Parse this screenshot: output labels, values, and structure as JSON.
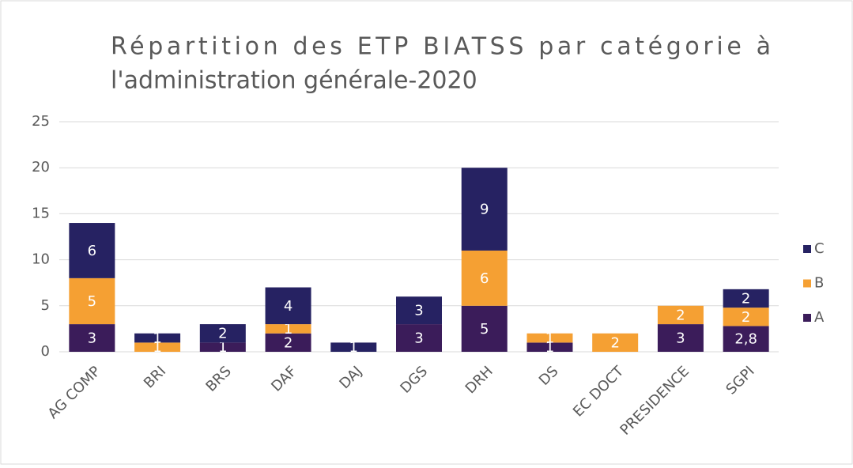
{
  "chart_data": {
    "type": "stacked_bar",
    "title": [
      "Répartition des ETP BIATSS par catégorie à",
      "l'administration générale-2020"
    ],
    "categories": [
      "AG COMP",
      "BRI",
      "BRS",
      "DAF",
      "DAJ",
      "DGS",
      "DRH",
      "DS",
      "EC DOCT",
      "PRESIDENCE",
      "SGPI"
    ],
    "series": [
      {
        "name": "A",
        "color": "#3b1c5a",
        "values": [
          3,
          null,
          1,
          2,
          null,
          3,
          5,
          1,
          null,
          3,
          2.8
        ],
        "value_labels": [
          "3",
          null,
          "1",
          "2",
          null,
          "3",
          "5",
          "1",
          null,
          "3",
          "2,8"
        ]
      },
      {
        "name": "B",
        "color": "#f5a033",
        "values": [
          5,
          1,
          null,
          1,
          null,
          null,
          6,
          1,
          2,
          2,
          2
        ]
      },
      {
        "name": "C",
        "color": "#262262",
        "values": [
          6,
          1,
          2,
          4,
          1,
          3,
          9,
          null,
          null,
          null,
          2
        ]
      }
    ],
    "ylim": [
      0,
      25
    ],
    "yticks": [
      0,
      5,
      10,
      15,
      20,
      25
    ],
    "grid": true,
    "legend": "right"
  }
}
